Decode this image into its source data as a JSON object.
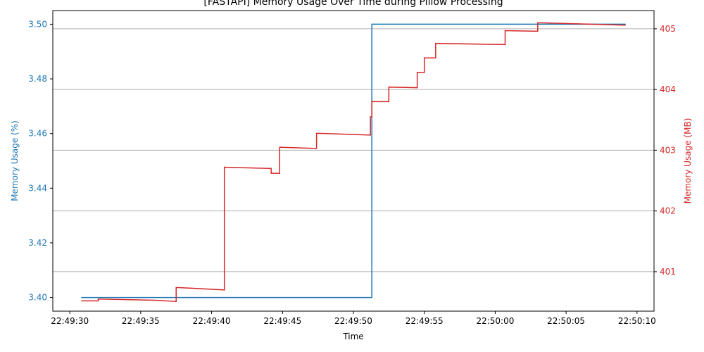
{
  "chart_data": {
    "type": "line",
    "title": "[FASTAPI] Memory Usage Over Time during Pillow Processing",
    "xlabel": "Time",
    "ylabel_left": "Memory Usage (%)",
    "ylabel_right": "Memory Usage (MB)",
    "x_ticks": [
      "22:49:30",
      "22:49:35",
      "22:49:40",
      "22:49:45",
      "22:49:50",
      "22:49:55",
      "22:50:00",
      "22:50:05",
      "22:50:10"
    ],
    "x_tick_seconds": [
      30,
      35,
      40,
      45,
      50,
      55,
      60,
      65,
      70
    ],
    "xlim_seconds": [
      28.8,
      71.2
    ],
    "y_left_ticks": [
      "3.40",
      "3.42",
      "3.44",
      "3.46",
      "3.48",
      "3.50"
    ],
    "y_left_tick_values": [
      3.4,
      3.42,
      3.44,
      3.46,
      3.48,
      3.5
    ],
    "ylim_left": [
      3.395,
      3.505
    ],
    "y_right_ticks": [
      "401",
      "402",
      "403",
      "404",
      "405"
    ],
    "y_right_tick_values": [
      401,
      402,
      403,
      404,
      405
    ],
    "ylim_right": [
      400.35,
      405.3
    ],
    "grid": "horizontal, right axis",
    "colors": {
      "left": "#1f77b4",
      "right": "#d62728",
      "grid": "#b0b0b0"
    },
    "series": [
      {
        "axis": "left",
        "points": [
          [
            30.8,
            3.4
          ],
          [
            51.3,
            3.4
          ],
          [
            51.3,
            3.5
          ],
          [
            69.2,
            3.5
          ]
        ]
      },
      {
        "axis": "right",
        "points": [
          [
            30.8,
            400.52
          ],
          [
            32.0,
            400.52
          ],
          [
            32.0,
            400.55
          ],
          [
            36.0,
            400.53
          ],
          [
            37.5,
            400.51
          ],
          [
            37.5,
            400.74
          ],
          [
            40.9,
            400.7
          ],
          [
            40.9,
            402.72
          ],
          [
            44.2,
            402.7
          ],
          [
            44.2,
            402.62
          ],
          [
            44.8,
            402.62
          ],
          [
            44.8,
            403.05
          ],
          [
            47.4,
            403.03
          ],
          [
            47.4,
            403.28
          ],
          [
            51.2,
            403.25
          ],
          [
            51.2,
            403.55
          ],
          [
            51.3,
            403.55
          ],
          [
            51.3,
            403.8
          ],
          [
            52.5,
            403.8
          ],
          [
            52.5,
            404.04
          ],
          [
            54.5,
            404.03
          ],
          [
            54.5,
            404.28
          ],
          [
            55.0,
            404.28
          ],
          [
            55.0,
            404.52
          ],
          [
            55.8,
            404.52
          ],
          [
            55.8,
            404.76
          ],
          [
            60.7,
            404.74
          ],
          [
            60.7,
            404.97
          ],
          [
            63.0,
            404.96
          ],
          [
            63.0,
            405.1
          ],
          [
            69.2,
            405.06
          ]
        ]
      }
    ]
  }
}
